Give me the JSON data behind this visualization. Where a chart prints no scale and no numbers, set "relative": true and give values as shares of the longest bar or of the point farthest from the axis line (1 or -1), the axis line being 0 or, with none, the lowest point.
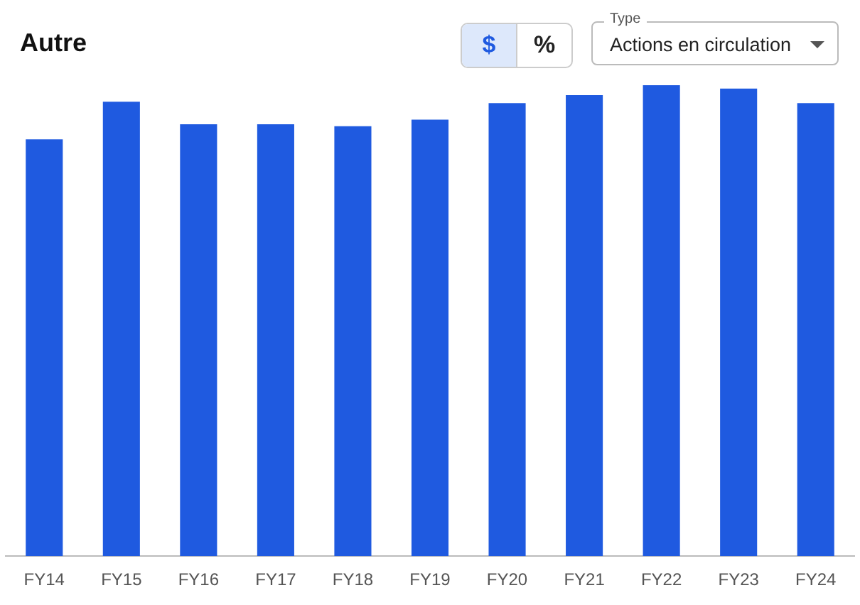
{
  "chart_data": {
    "type": "bar",
    "title": "Autre",
    "categories": [
      "FY14",
      "FY15",
      "FY16",
      "FY17",
      "FY18",
      "FY19",
      "FY20",
      "FY21",
      "FY22",
      "FY23",
      "FY24"
    ],
    "values": [
      0.885,
      0.965,
      0.917,
      0.917,
      0.913,
      0.927,
      0.962,
      0.979,
      1,
      0.993,
      0.962
    ],
    "color": "#1f5ae0",
    "relative": true,
    "grid": false,
    "legend": false,
    "annotations": [
      "$",
      "%",
      "Type",
      "Actions en circulation"
    ]
  }
}
